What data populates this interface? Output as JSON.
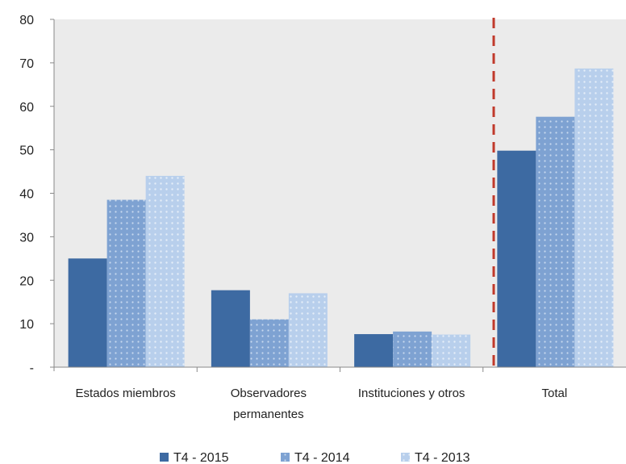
{
  "chart_data": {
    "type": "bar",
    "title": "",
    "xlabel": "",
    "ylabel": "",
    "ylim": [
      0,
      80
    ],
    "y_ticks": [
      {
        "value": 0,
        "label": "-"
      },
      {
        "value": 10,
        "label": "10"
      },
      {
        "value": 20,
        "label": "20"
      },
      {
        "value": 30,
        "label": "30"
      },
      {
        "value": 40,
        "label": "40"
      },
      {
        "value": 50,
        "label": "50"
      },
      {
        "value": 60,
        "label": "60"
      },
      {
        "value": 70,
        "label": "70"
      },
      {
        "value": 80,
        "label": "80"
      }
    ],
    "categories": [
      [
        "Estados  miembros"
      ],
      [
        "Observadores",
        "permanentes"
      ],
      [
        "Instituciones  y otros"
      ],
      [
        "Total"
      ]
    ],
    "series": [
      {
        "name": "T4 - 2015",
        "color": "#3d6aa2",
        "values": [
          25,
          17.7,
          7.6,
          49.8
        ]
      },
      {
        "name": "T4 - 2014",
        "color": "#7ea2d2",
        "values": [
          38.5,
          11,
          8.2,
          57.6
        ]
      },
      {
        "name": "T4 - 2013",
        "color": "#b8cfec",
        "values": [
          44,
          17,
          7.5,
          68.7
        ]
      }
    ],
    "grid": false,
    "plot_background": "#ebebeb",
    "divider_color": "#c0392b",
    "legend": "bottom"
  }
}
